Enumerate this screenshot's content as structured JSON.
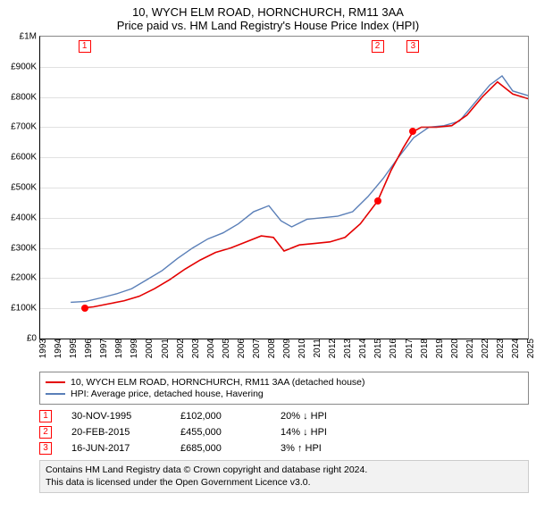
{
  "title": "10, WYCH ELM ROAD, HORNCHURCH, RM11 3AA",
  "subtitle": "Price paid vs. HM Land Registry's House Price Index (HPI)",
  "chart": {
    "type": "line",
    "background_color": "#ffffff",
    "grid_color": "#bbbbbb",
    "axis_color": "#000000",
    "x_years": [
      1993,
      1994,
      1995,
      1996,
      1997,
      1998,
      1999,
      2000,
      2001,
      2002,
      2003,
      2004,
      2005,
      2006,
      2007,
      2008,
      2009,
      2010,
      2011,
      2012,
      2013,
      2014,
      2015,
      2016,
      2017,
      2018,
      2019,
      2020,
      2021,
      2022,
      2023,
      2024,
      2025
    ],
    "ylim": [
      0,
      1000000
    ],
    "ytick_step": 100000,
    "ytick_labels": [
      "£0",
      "£100K",
      "£200K",
      "£300K",
      "£400K",
      "£500K",
      "£600K",
      "£700K",
      "£800K",
      "£900K",
      "£1M"
    ],
    "series": [
      {
        "name": "subject",
        "label": "10, WYCH ELM ROAD, HORNCHURCH, RM11 3AA (detached house)",
        "color": "#e40000",
        "line_width": 1.6,
        "xy": [
          [
            1995.91,
            102000
          ],
          [
            1996.5,
            105000
          ],
          [
            1997.5,
            115000
          ],
          [
            1998.5,
            125000
          ],
          [
            1999.5,
            140000
          ],
          [
            2000.5,
            165000
          ],
          [
            2001.5,
            195000
          ],
          [
            2002.5,
            230000
          ],
          [
            2003.5,
            260000
          ],
          [
            2004.5,
            285000
          ],
          [
            2005.5,
            300000
          ],
          [
            2006.5,
            320000
          ],
          [
            2007.5,
            340000
          ],
          [
            2008.3,
            335000
          ],
          [
            2009.0,
            290000
          ],
          [
            2010.0,
            310000
          ],
          [
            2011.0,
            315000
          ],
          [
            2012.0,
            320000
          ],
          [
            2013.0,
            335000
          ],
          [
            2014.0,
            380000
          ],
          [
            2015.13,
            455000
          ],
          [
            2016.0,
            555000
          ],
          [
            2016.8,
            630000
          ],
          [
            2017.46,
            685000
          ],
          [
            2018.0,
            700000
          ],
          [
            2019.0,
            700000
          ],
          [
            2020.0,
            705000
          ],
          [
            2021.0,
            740000
          ],
          [
            2022.0,
            800000
          ],
          [
            2023.0,
            850000
          ],
          [
            2024.0,
            810000
          ],
          [
            2025.3,
            790000
          ]
        ]
      },
      {
        "name": "hpi",
        "label": "HPI: Average price, detached house, Havering",
        "color": "#5a7fb8",
        "line_width": 1.4,
        "xy": [
          [
            1995.0,
            120000
          ],
          [
            1996.0,
            123000
          ],
          [
            1997.0,
            135000
          ],
          [
            1998.0,
            148000
          ],
          [
            1999.0,
            165000
          ],
          [
            2000.0,
            195000
          ],
          [
            2001.0,
            225000
          ],
          [
            2002.0,
            265000
          ],
          [
            2003.0,
            300000
          ],
          [
            2004.0,
            330000
          ],
          [
            2005.0,
            350000
          ],
          [
            2006.0,
            380000
          ],
          [
            2007.0,
            420000
          ],
          [
            2008.0,
            440000
          ],
          [
            2008.8,
            390000
          ],
          [
            2009.5,
            370000
          ],
          [
            2010.5,
            395000
          ],
          [
            2011.5,
            400000
          ],
          [
            2012.5,
            405000
          ],
          [
            2013.5,
            420000
          ],
          [
            2014.5,
            470000
          ],
          [
            2015.5,
            530000
          ],
          [
            2016.5,
            600000
          ],
          [
            2017.5,
            665000
          ],
          [
            2018.5,
            700000
          ],
          [
            2019.5,
            705000
          ],
          [
            2020.5,
            720000
          ],
          [
            2021.5,
            780000
          ],
          [
            2022.5,
            840000
          ],
          [
            2023.3,
            870000
          ],
          [
            2024.0,
            820000
          ],
          [
            2025.3,
            800000
          ]
        ]
      }
    ],
    "markers": [
      {
        "n": "1",
        "x": 1995.91,
        "y": 102000
      },
      {
        "n": "2",
        "x": 2015.13,
        "y": 455000
      },
      {
        "n": "3",
        "x": 2017.46,
        "y": 685000
      }
    ]
  },
  "legend": {
    "items": [
      {
        "color": "#e40000",
        "text": "10, WYCH ELM ROAD, HORNCHURCH, RM11 3AA (detached house)"
      },
      {
        "color": "#5a7fb8",
        "text": "HPI: Average price, detached house, Havering"
      }
    ]
  },
  "transactions": [
    {
      "n": "1",
      "date": "30-NOV-1995",
      "price": "£102,000",
      "diff": "20% ↓ HPI"
    },
    {
      "n": "2",
      "date": "20-FEB-2015",
      "price": "£455,000",
      "diff": "14% ↓ HPI"
    },
    {
      "n": "3",
      "date": "16-JUN-2017",
      "price": "£685,000",
      "diff": "3% ↑ HPI"
    }
  ],
  "attribution": {
    "line1": "Contains HM Land Registry data © Crown copyright and database right 2024.",
    "line2": "This data is licensed under the Open Government Licence v3.0."
  }
}
